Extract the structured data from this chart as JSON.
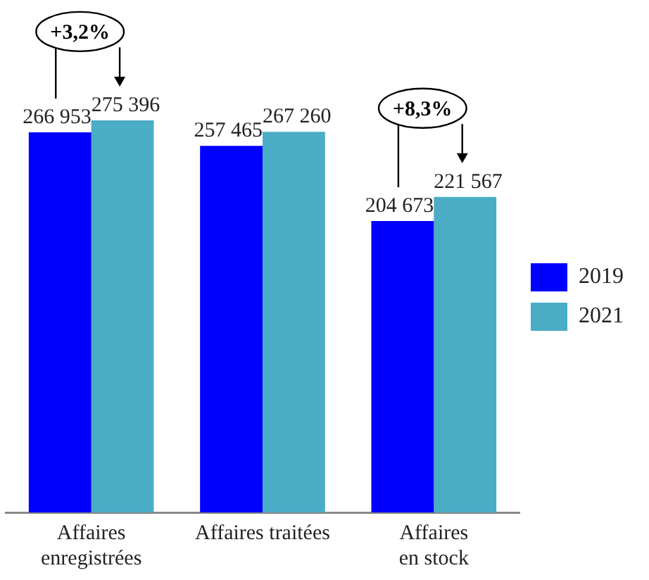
{
  "chart_data": {
    "type": "bar",
    "categories": [
      "Affaires enregistrées",
      "Affaires traitées",
      "Affaires en stock"
    ],
    "series": [
      {
        "name": "2019",
        "color": "#0000ff",
        "values": [
          266953,
          257465,
          204673
        ],
        "value_labels": [
          "266 953",
          "257 465",
          "204 673"
        ]
      },
      {
        "name": "2021",
        "color": "#4bacc6",
        "values": [
          275396,
          267260,
          221567
        ],
        "value_labels": [
          "275 396",
          "267 260",
          "221 567"
        ]
      }
    ],
    "annotations": [
      "+3,2%",
      "+8,3%"
    ],
    "legend": "right",
    "grid": false
  }
}
